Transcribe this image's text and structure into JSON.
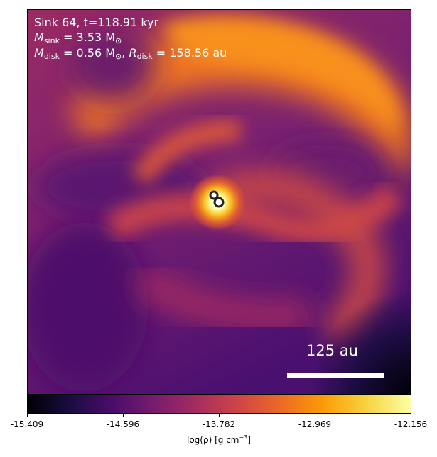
{
  "annotation": {
    "sink_title": "Sink 64, t=118.91 kyr",
    "m_sink_symbol": "M",
    "m_sink_sub": "sink",
    "m_sink_value": " = 3.53 M",
    "m_sink_unit_sub": "⊙",
    "m_disk_symbol": "M",
    "m_disk_sub": "disk",
    "m_disk_value": " = 0.56 M",
    "m_disk_unit_sub": "⊙",
    "separator": ", ",
    "r_disk_symbol": "R",
    "r_disk_sub": "disk",
    "r_disk_value": " = 158.56 au"
  },
  "scalebar": {
    "label": "125 au"
  },
  "colorbar": {
    "label_prefix": "log(ρ) [g cm",
    "label_exp": "−3",
    "label_suffix": "]",
    "colormap": "inferno",
    "ticks": [
      "-15.409",
      "-14.596",
      "-13.782",
      "-12.969",
      "-12.156"
    ],
    "range": [
      -15.409,
      -12.156
    ]
  },
  "colors": {
    "background_low": "#000004",
    "purple": "#6a1e6e",
    "magenta": "#a52c60",
    "orange": "#ed6925",
    "bright": "#fcffa4"
  },
  "sinks": [
    {
      "name": "sink-a"
    },
    {
      "name": "sink-b"
    }
  ]
}
